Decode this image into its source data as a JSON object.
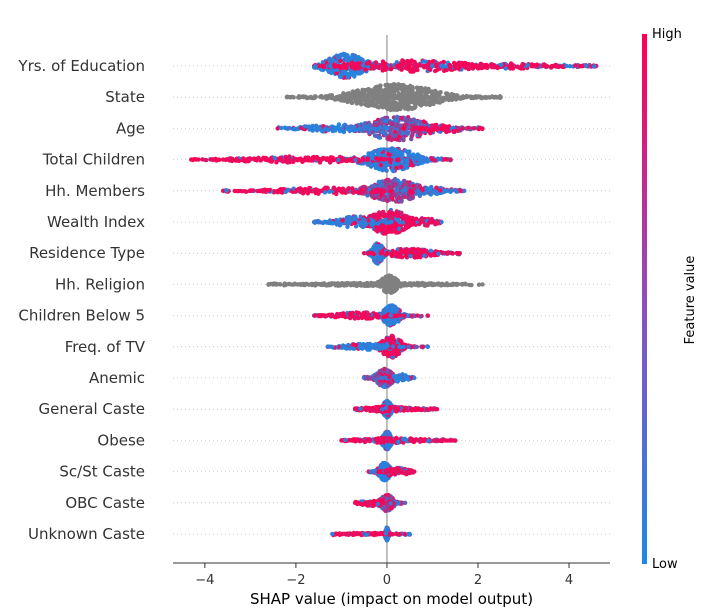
{
  "chart_data": {
    "type": "scatter",
    "subtype": "shap-beeswarm-summary",
    "xlabel": "SHAP value (impact on model output)",
    "xlim": [
      -4.7,
      4.9
    ],
    "xticks": [
      -4,
      -2,
      0,
      2,
      4
    ],
    "xtick_labels": [
      "−4",
      "−2",
      "0",
      "2",
      "4"
    ],
    "colorbar": {
      "label": "Feature value",
      "high_label": "High",
      "low_label": "Low",
      "high_color": "#ff0052",
      "low_color": "#1e88e5",
      "na_color": "#808080"
    },
    "features": [
      {
        "name": "Yrs. of Education",
        "min": -1.6,
        "max": 4.6,
        "clusters": [
          {
            "c": -0.9,
            "s": 0.35,
            "w": 0.95,
            "col": "low",
            "n": 260
          },
          {
            "c": 0.6,
            "s": 1.1,
            "w": 0.45,
            "col": "high",
            "n": 240
          },
          {
            "c": 2.7,
            "s": 0.9,
            "w": 0.22,
            "col": "high",
            "n": 90
          }
        ]
      },
      {
        "name": "State",
        "min": -2.2,
        "max": 2.5,
        "clusters": [
          {
            "c": 0.2,
            "s": 0.75,
            "w": 1.0,
            "col": "na",
            "n": 520
          }
        ]
      },
      {
        "name": "Age",
        "min": -2.4,
        "max": 2.1,
        "clusters": [
          {
            "c": 0.25,
            "s": 0.55,
            "w": 0.95,
            "col": "mix",
            "n": 320
          },
          {
            "c": -1.1,
            "s": 0.6,
            "w": 0.3,
            "col": "low",
            "n": 90
          },
          {
            "c": 1.3,
            "s": 0.4,
            "w": 0.3,
            "col": "high",
            "n": 60
          }
        ]
      },
      {
        "name": "Total Children",
        "min": -4.3,
        "max": 1.4,
        "clusters": [
          {
            "c": 0.1,
            "s": 0.45,
            "w": 0.9,
            "col": "low",
            "n": 300
          },
          {
            "c": -1.8,
            "s": 1.2,
            "w": 0.25,
            "col": "high",
            "n": 150
          }
        ]
      },
      {
        "name": "Hh. Members",
        "min": -3.6,
        "max": 1.7,
        "clusters": [
          {
            "c": 0.15,
            "s": 0.45,
            "w": 0.9,
            "col": "mix",
            "n": 280
          },
          {
            "c": -1.4,
            "s": 0.9,
            "w": 0.25,
            "col": "high",
            "n": 130
          },
          {
            "c": 0.9,
            "s": 0.35,
            "w": 0.3,
            "col": "low",
            "n": 60
          }
        ]
      },
      {
        "name": "Wealth Index",
        "min": -1.6,
        "max": 1.2,
        "clusters": [
          {
            "c": 0.05,
            "s": 0.35,
            "w": 0.95,
            "col": "high",
            "n": 260
          },
          {
            "c": -0.7,
            "s": 0.35,
            "w": 0.45,
            "col": "low",
            "n": 100
          },
          {
            "c": 0.8,
            "s": 0.25,
            "w": 0.3,
            "col": "high",
            "n": 50
          }
        ]
      },
      {
        "name": "Residence Type",
        "min": -0.5,
        "max": 1.6,
        "clusters": [
          {
            "c": -0.2,
            "s": 0.1,
            "w": 0.8,
            "col": "low",
            "n": 200
          },
          {
            "c": 0.5,
            "s": 0.45,
            "w": 0.35,
            "col": "high",
            "n": 140
          }
        ]
      },
      {
        "name": "Hh. Religion",
        "min": -2.6,
        "max": 2.1,
        "clusters": [
          {
            "c": 0.05,
            "s": 0.15,
            "w": 0.7,
            "col": "na",
            "n": 180
          },
          {
            "c": -0.5,
            "s": 0.9,
            "w": 0.12,
            "col": "na",
            "n": 150
          },
          {
            "c": 0.7,
            "s": 0.6,
            "w": 0.12,
            "col": "na",
            "n": 70
          }
        ]
      },
      {
        "name": "Children Below 5",
        "min": -1.6,
        "max": 0.9,
        "clusters": [
          {
            "c": 0.1,
            "s": 0.15,
            "w": 0.8,
            "col": "low",
            "n": 200
          },
          {
            "c": -0.6,
            "s": 0.45,
            "w": 0.25,
            "col": "high",
            "n": 120
          }
        ]
      },
      {
        "name": "Freq. of TV",
        "min": -1.3,
        "max": 0.9,
        "clusters": [
          {
            "c": 0.1,
            "s": 0.18,
            "w": 0.85,
            "col": "high",
            "n": 200
          },
          {
            "c": -0.5,
            "s": 0.35,
            "w": 0.25,
            "col": "low",
            "n": 110
          }
        ]
      },
      {
        "name": "Anemic",
        "min": -0.5,
        "max": 0.6,
        "clusters": [
          {
            "c": -0.05,
            "s": 0.15,
            "w": 0.7,
            "col": "mix",
            "n": 180
          },
          {
            "c": 0.3,
            "s": 0.15,
            "w": 0.3,
            "col": "low",
            "n": 50
          }
        ]
      },
      {
        "name": "General Caste",
        "min": -0.7,
        "max": 1.1,
        "clusters": [
          {
            "c": 0.0,
            "s": 0.08,
            "w": 0.65,
            "col": "low",
            "n": 160
          },
          {
            "c": 0.0,
            "s": 0.45,
            "w": 0.2,
            "col": "high",
            "n": 120
          }
        ]
      },
      {
        "name": "Obese",
        "min": -1.0,
        "max": 1.5,
        "clusters": [
          {
            "c": 0.0,
            "s": 0.08,
            "w": 0.7,
            "col": "low",
            "n": 170
          },
          {
            "c": 0.1,
            "s": 0.6,
            "w": 0.2,
            "col": "high",
            "n": 140
          }
        ]
      },
      {
        "name": "Sc/St Caste",
        "min": -0.4,
        "max": 0.6,
        "clusters": [
          {
            "c": -0.05,
            "s": 0.1,
            "w": 0.7,
            "col": "low",
            "n": 160
          },
          {
            "c": 0.25,
            "s": 0.2,
            "w": 0.3,
            "col": "high",
            "n": 70
          }
        ]
      },
      {
        "name": "OBC Caste",
        "min": -0.7,
        "max": 0.4,
        "clusters": [
          {
            "c": 0.0,
            "s": 0.12,
            "w": 0.65,
            "col": "mix",
            "n": 160
          },
          {
            "c": -0.3,
            "s": 0.25,
            "w": 0.25,
            "col": "high",
            "n": 70
          }
        ]
      },
      {
        "name": "Unknown Caste",
        "min": -1.2,
        "max": 0.5,
        "clusters": [
          {
            "c": 0.0,
            "s": 0.03,
            "w": 0.5,
            "col": "low",
            "n": 120
          },
          {
            "c": -0.3,
            "s": 0.35,
            "w": 0.08,
            "col": "high",
            "n": 70
          }
        ]
      }
    ]
  }
}
